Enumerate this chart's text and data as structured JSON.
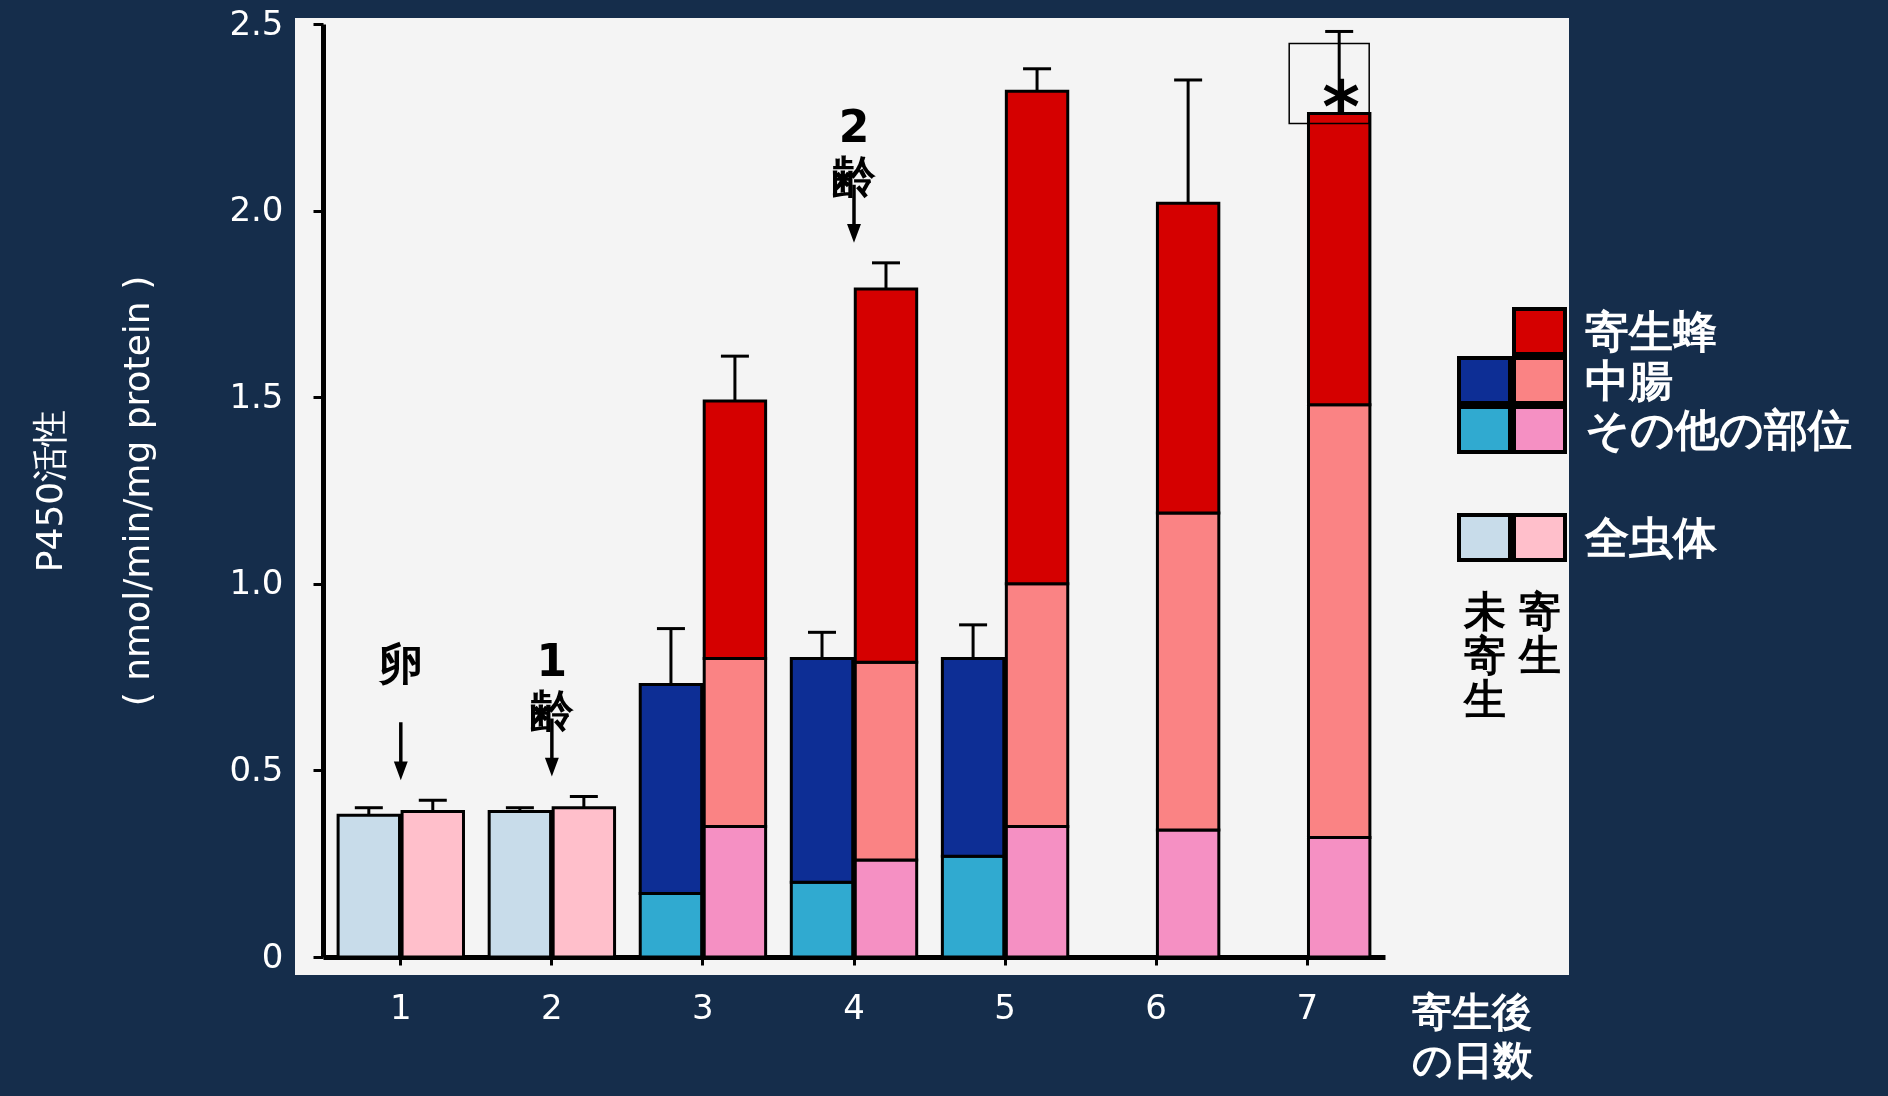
{
  "chart_data": [
    {
      "type": "bar",
      "stacked": true,
      "ylabel": "P450活性\n( nmol/min/mg protein )",
      "xlabel": "寄生後の日数",
      "legend_title": "未寄生",
      "categories": [
        "1",
        "2",
        "3",
        "4",
        "5",
        "6",
        "7"
      ],
      "ylim": [
        0,
        2.5
      ],
      "yticks": [
        0,
        0.5,
        {
          "value": 1,
          "label": "1.0"
        },
        1.5,
        {
          "value": 2,
          "label": "2.0"
        },
        2.5
      ],
      "legend": "right",
      "series": [
        {
          "name": "全虫体",
          "color": "#c8dcea",
          "values": [
            0.38,
            0.39,
            null,
            null,
            null,
            null,
            null
          ],
          "errors": [
            [
              0.38,
              0.4
            ],
            [
              0.39,
              0.4
            ],
            null,
            null,
            null,
            null,
            null
          ]
        },
        {
          "name": "その他の部位",
          "color": "#30aad0",
          "values": [
            null,
            null,
            0.17,
            0.2,
            0.27,
            null,
            null
          ]
        },
        {
          "name": "中腸",
          "color": "#0d2e95",
          "values": [
            null,
            null,
            0.56,
            0.6,
            0.53,
            null,
            null
          ],
          "errors": [
            null,
            null,
            [
              0.73,
              0.88
            ],
            [
              0.8,
              0.87
            ],
            [
              0.8,
              0.89
            ],
            null,
            null
          ]
        }
      ]
    },
    {
      "type": "bar",
      "stacked": true,
      "legend_title": "寄生",
      "categories": [
        "1",
        "2",
        "3",
        "4",
        "5",
        "6",
        "7"
      ],
      "ylim": [
        0,
        2.5
      ],
      "tick_labels": false,
      "legend": "right",
      "series": [
        {
          "name": "全虫体",
          "color": "#ffbfcb",
          "values": [
            0.39,
            0.4,
            null,
            null,
            null,
            null,
            null
          ],
          "errors": [
            [
              0.39,
              0.42
            ],
            [
              0.4,
              0.43
            ],
            null,
            null,
            null,
            null,
            null
          ]
        },
        {
          "name": "その他の部位",
          "color": "#f590c3",
          "values": [
            null,
            null,
            0.35,
            0.26,
            0.35,
            0.34,
            0.32
          ]
        },
        {
          "name": "中腸",
          "color": "#fa8384",
          "values": [
            null,
            null,
            0.45,
            0.53,
            0.65,
            0.85,
            1.16
          ]
        },
        {
          "name": "寄生蜂",
          "color": "#d50000",
          "values": [
            null,
            null,
            0.69,
            1.0,
            1.32,
            0.83,
            0.78
          ],
          "errors": [
            null,
            null,
            [
              1.49,
              1.61
            ],
            [
              1.79,
              1.86
            ],
            [
              2.32,
              2.38
            ],
            [
              2.02,
              2.35
            ],
            [
              2.26,
              2.48
            ]
          ]
        }
      ],
      "annotations": [
        "卵",
        "1齢",
        "2齢",
        {
          "text": "*",
          "x": "7",
          "y": 2.26
        }
      ]
    }
  ]
}
